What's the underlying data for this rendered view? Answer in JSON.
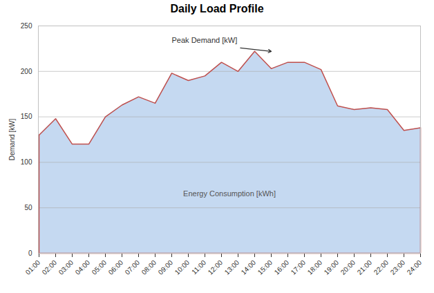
{
  "chart_data": {
    "type": "area",
    "title": "Daily Load Profile",
    "ylabel": "Demand [kW]",
    "categories": [
      "01:00",
      "02:00",
      "03:00",
      "04:00",
      "05:00",
      "06:00",
      "07:00",
      "08:00",
      "09:00",
      "10:00",
      "11:00",
      "12:00",
      "13:00",
      "14:00",
      "15:00",
      "16:00",
      "17:00",
      "18:00",
      "19:00",
      "20:00",
      "21:00",
      "22:00",
      "23:00",
      "24:00"
    ],
    "values": [
      130,
      148,
      120,
      120,
      150,
      163,
      172,
      165,
      198,
      190,
      195,
      210,
      200,
      222,
      203,
      210,
      210,
      202,
      162,
      158,
      160,
      158,
      135,
      138
    ],
    "color": "#c0504d",
    "ylim": [
      0,
      250
    ],
    "yticks": [
      0,
      50,
      100,
      150,
      200,
      250
    ],
    "grid": true,
    "annotations": [
      {
        "text": "Peak Demand [kW]",
        "x": "09:00",
        "y": 234,
        "arrow_x": "15:00",
        "arrow_y": 222
      },
      {
        "text": "Energy Consumption [kWh]",
        "y": 65
      }
    ]
  }
}
